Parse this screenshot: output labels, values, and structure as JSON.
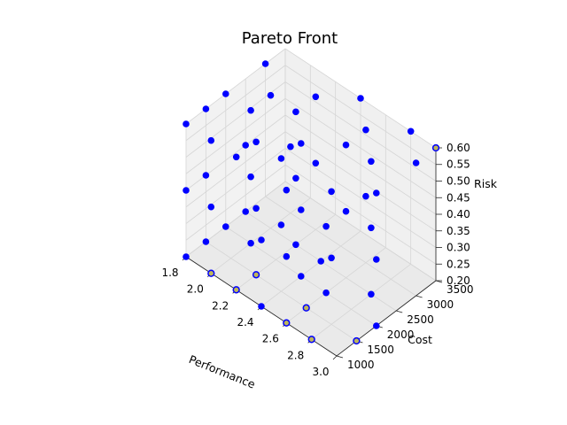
{
  "chart_data": {
    "type": "scatter",
    "projection": "3d",
    "title": "Pareto Front",
    "xlabel": "Performance",
    "ylabel": "Cost",
    "zlabel": "Risk",
    "xlim": [
      1.8,
      3.0
    ],
    "ylim": [
      1000,
      3500
    ],
    "zlim": [
      0.2,
      0.6
    ],
    "xticks": [
      "1.8",
      "2.0",
      "2.2",
      "2.4",
      "2.6",
      "2.8",
      "3.0"
    ],
    "yticks": [
      "1000",
      "1500",
      "2000",
      "2500",
      "3000",
      "3500"
    ],
    "zticks": [
      "0.20",
      "0.25",
      "0.30",
      "0.35",
      "0.40",
      "0.45",
      "0.50",
      "0.55",
      "0.60"
    ],
    "grid": true,
    "legend": "none",
    "colors": {
      "points": "#0000ff",
      "pareto": "#bdb55a",
      "pareto_edge": "#0000ff"
    },
    "series": [
      {
        "points": [
          [
            1.8,
            1000,
            0.2
          ],
          [
            2.0,
            1000,
            0.2
          ],
          [
            2.2,
            1000,
            0.2
          ],
          [
            2.4,
            1000,
            0.2
          ],
          [
            2.6,
            1000,
            0.2
          ],
          [
            2.8,
            1000,
            0.2
          ],
          [
            1.8,
            1500,
            0.2
          ],
          [
            2.2,
            1500,
            0.2
          ],
          [
            2.6,
            1500,
            0.2
          ],
          [
            3.0,
            1500,
            0.2
          ],
          [
            1.8,
            2000,
            0.2
          ],
          [
            2.0,
            2000,
            0.2
          ],
          [
            2.4,
            2000,
            0.2
          ],
          [
            2.6,
            2000,
            0.2
          ],
          [
            3.0,
            2000,
            0.2
          ],
          [
            1.8,
            2500,
            0.2
          ],
          [
            2.2,
            2500,
            0.2
          ],
          [
            2.4,
            2500,
            0.2
          ],
          [
            2.8,
            2500,
            0.2
          ],
          [
            1.8,
            1000,
            0.4
          ],
          [
            2.0,
            1000,
            0.4
          ],
          [
            2.4,
            1000,
            0.4
          ],
          [
            2.6,
            1000,
            0.4
          ],
          [
            1.8,
            1500,
            0.4
          ],
          [
            2.2,
            1500,
            0.4
          ],
          [
            2.4,
            1500,
            0.4
          ],
          [
            2.8,
            1500,
            0.4
          ],
          [
            2.0,
            2000,
            0.4
          ],
          [
            2.4,
            2000,
            0.4
          ],
          [
            2.6,
            2000,
            0.4
          ],
          [
            3.0,
            2000,
            0.4
          ],
          [
            1.8,
            2500,
            0.4
          ],
          [
            2.2,
            2500,
            0.4
          ],
          [
            2.6,
            2500,
            0.4
          ],
          [
            2.8,
            2500,
            0.4
          ],
          [
            2.0,
            3000,
            0.4
          ],
          [
            2.2,
            3000,
            0.4
          ],
          [
            2.6,
            3000,
            0.4
          ],
          [
            1.8,
            1000,
            0.6
          ],
          [
            2.0,
            1000,
            0.6
          ],
          [
            2.2,
            1000,
            0.6
          ],
          [
            2.6,
            1000,
            0.6
          ],
          [
            1.8,
            1500,
            0.6
          ],
          [
            2.2,
            1500,
            0.6
          ],
          [
            2.4,
            1500,
            0.6
          ],
          [
            2.8,
            1500,
            0.6
          ],
          [
            1.8,
            2000,
            0.6
          ],
          [
            2.0,
            2000,
            0.6
          ],
          [
            2.4,
            2000,
            0.6
          ],
          [
            3.0,
            2000,
            0.6
          ],
          [
            2.0,
            2500,
            0.6
          ],
          [
            2.2,
            2500,
            0.6
          ],
          [
            2.6,
            2500,
            0.6
          ],
          [
            2.8,
            2500,
            0.6
          ],
          [
            1.8,
            3000,
            0.6
          ],
          [
            2.2,
            3000,
            0.6
          ],
          [
            2.6,
            3000,
            0.6
          ],
          [
            3.0,
            3000,
            0.6
          ],
          [
            2.4,
            3500,
            0.6
          ],
          [
            2.8,
            3500,
            0.6
          ],
          [
            3.0,
            3500,
            0.6
          ]
        ]
      },
      {
        "points": [
          [
            2.0,
            1000,
            0.2
          ],
          [
            2.2,
            1000,
            0.2
          ],
          [
            2.6,
            1000,
            0.2
          ],
          [
            2.8,
            1000,
            0.2
          ],
          [
            2.2,
            1500,
            0.2
          ],
          [
            2.6,
            1500,
            0.2
          ],
          [
            3.0,
            1500,
            0.2
          ],
          [
            3.0,
            3500,
            0.6
          ]
        ]
      }
    ]
  }
}
